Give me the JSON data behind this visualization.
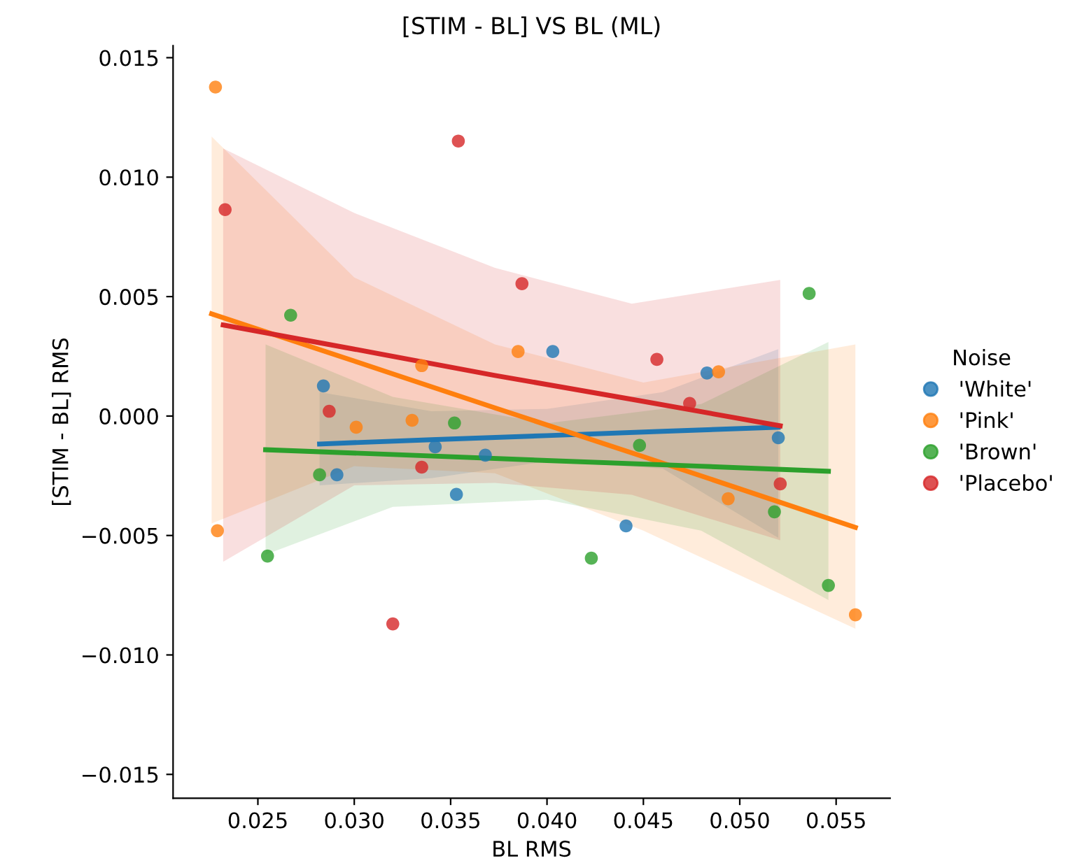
{
  "chart_data": {
    "type": "scatter",
    "title": "[STIM - BL] VS BL (ML)",
    "xlabel": "BL RMS",
    "ylabel": "[STIM - BL] RMS",
    "legend_title": "Noise",
    "legend": "right",
    "grid": false,
    "xlim": [
      0.0206,
      0.0578
    ],
    "xticks": [
      {
        "value": 0.025,
        "label": "0.025"
      },
      {
        "value": 0.03,
        "label": "0.030"
      },
      {
        "value": 0.035,
        "label": "0.035"
      },
      {
        "value": 0.04,
        "label": "0.040"
      },
      {
        "value": 0.045,
        "label": "0.045"
      },
      {
        "value": 0.05,
        "label": "0.050"
      },
      {
        "value": 0.055,
        "label": "0.055"
      }
    ],
    "ylim": [
      -0.016,
      0.0155
    ],
    "yticks": [
      {
        "value": -0.015,
        "label": "−0.015"
      },
      {
        "value": -0.01,
        "label": "−0.010"
      },
      {
        "value": -0.005,
        "label": "−0.005"
      },
      {
        "value": 0,
        "label": "0.000"
      },
      {
        "value": 0.005,
        "label": "0.005"
      },
      {
        "value": 0.01,
        "label": "0.010"
      },
      {
        "value": 0.015,
        "label": "0.015"
      }
    ],
    "series": [
      {
        "name": "'White'",
        "marker": "circle",
        "color": "#1f77b4",
        "x": [
          0.0284,
          0.0291,
          0.0342,
          0.0353,
          0.0368,
          0.0403,
          0.0441,
          0.0483,
          0.052
        ],
        "values": [
          0.00126,
          -0.00246,
          -0.00129,
          -0.00328,
          -0.00164,
          0.0027,
          -0.0046,
          0.0018,
          -0.00091
        ]
      },
      {
        "name": "'Pink'",
        "marker": "circle",
        "color": "#ff7f0e",
        "x": [
          0.0228,
          0.0229,
          0.0301,
          0.033,
          0.0335,
          0.0385,
          0.0489,
          0.0494,
          0.056
        ],
        "values": [
          0.01377,
          -0.0048,
          -0.00047,
          -0.00018,
          0.00211,
          0.0027,
          0.00185,
          -0.00346,
          -0.00832
        ]
      },
      {
        "name": "'Brown'",
        "marker": "circle",
        "color": "#2ca02c",
        "x": [
          0.0255,
          0.0267,
          0.0282,
          0.0352,
          0.0423,
          0.0448,
          0.0518,
          0.0536,
          0.0546
        ],
        "values": [
          -0.00586,
          0.00422,
          -0.00246,
          -0.00029,
          -0.00595,
          -0.00123,
          -0.00401,
          0.00513,
          -0.00709
        ]
      },
      {
        "name": "'Placebo'",
        "marker": "circle",
        "color": "#d62728",
        "x": [
          0.0233,
          0.0287,
          0.0335,
          0.0354,
          0.0387,
          0.032,
          0.0457,
          0.0474,
          0.0521
        ],
        "values": [
          0.00864,
          0.0002,
          -0.00214,
          0.01151,
          0.00554,
          -0.0087,
          0.00237,
          0.00053,
          -0.00284
        ]
      },
      {
        "type": "line",
        "color": "#1f77b4",
        "x": [
          0.0282,
          0.034,
          0.04,
          0.046,
          0.052
        ],
        "values": [
          -0.00117,
          -0.00099,
          -0.00082,
          -0.00064,
          -0.00047
        ],
        "lower": [
          -0.0029,
          -0.0026,
          -0.0019,
          -0.0022,
          -0.0051
        ],
        "upper": [
          0.001,
          0.0002,
          0.0003,
          0.001,
          0.0028
        ]
      },
      {
        "type": "line",
        "color": "#ff7f0e",
        "x": [
          0.0226,
          0.03,
          0.0373,
          0.045,
          0.056
        ],
        "values": [
          0.00428,
          0.0023,
          0.00034,
          -0.0017,
          -0.00466
        ],
        "lower": [
          -0.0045,
          -0.0021,
          -0.0024,
          -0.0048,
          -0.0089
        ],
        "upper": [
          0.0117,
          0.0058,
          0.003,
          0.0014,
          0.003
        ]
      },
      {
        "type": "line",
        "color": "#2ca02c",
        "x": [
          0.0254,
          0.032,
          0.04,
          0.048,
          0.0546
        ],
        "values": [
          -0.00141,
          -0.00161,
          -0.00186,
          -0.0021,
          -0.00231
        ],
        "lower": [
          -0.0058,
          -0.0038,
          -0.0035,
          -0.0048,
          -0.0077
        ],
        "upper": [
          0.003,
          0.0008,
          -0.0003,
          0.0005,
          0.0031
        ]
      },
      {
        "type": "line",
        "color": "#d62728",
        "x": [
          0.0232,
          0.03,
          0.0373,
          0.0444,
          0.0521
        ],
        "values": [
          0.00381,
          0.0028,
          0.0017,
          0.0007,
          -0.00041
        ],
        "lower": [
          -0.0061,
          -0.0029,
          -0.0028,
          -0.0033,
          -0.0052
        ],
        "upper": [
          0.0112,
          0.0085,
          0.0062,
          0.0047,
          0.0057
        ]
      }
    ]
  }
}
